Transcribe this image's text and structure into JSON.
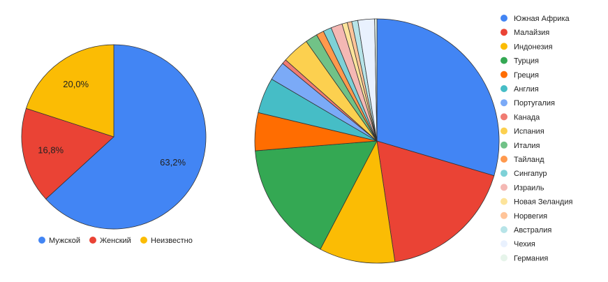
{
  "chart_data": [
    {
      "type": "pie",
      "categories": [
        "Мужской",
        "Женский",
        "Неизвестно"
      ],
      "values": [
        63.2,
        16.8,
        20.0
      ],
      "data_labels": [
        "63,2%",
        "16,8%",
        "20,0%"
      ],
      "colors": [
        "#4285f4",
        "#ea4335",
        "#fbbc04"
      ],
      "legend_position": "bottom"
    },
    {
      "type": "pie",
      "categories": [
        "Южная Африка",
        "Малайзия",
        "Индонезия",
        "Турция",
        "Греция",
        "Англия",
        "Португалия",
        "Канада",
        "Испания",
        "Италия",
        "Тайланд",
        "Сингапур",
        "Израиль",
        "Новая Зеландия",
        "Норвегия",
        "Австралия",
        "Чехия",
        "Германия"
      ],
      "values": [
        29.5,
        18.0,
        10.0,
        16.0,
        5.0,
        4.7,
        2.5,
        0.6,
        3.6,
        1.6,
        1.0,
        1.1,
        1.5,
        0.7,
        0.6,
        0.8,
        2.2,
        0.3
      ],
      "colors": [
        "#4285f4",
        "#ea4335",
        "#fbbc04",
        "#34a853",
        "#ff6d01",
        "#46bdc6",
        "#7baaf7",
        "#f07b72",
        "#fcd04f",
        "#71c287",
        "#ff994d",
        "#7ed1d7",
        "#f4b8b4",
        "#fde49b",
        "#ffc499",
        "#b7e4e8",
        "#e9f1fe",
        "#e6f4ea"
      ],
      "legend_position": "right"
    }
  ]
}
